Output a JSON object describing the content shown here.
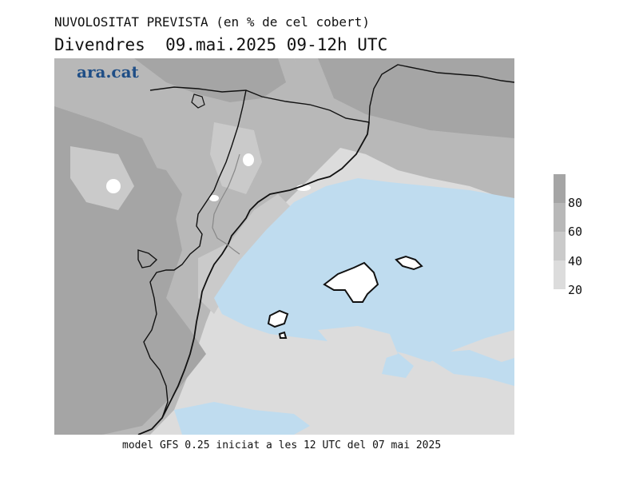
{
  "header": {
    "title": "NUVOLOSITAT PREVISTA (en % de cel cobert)",
    "subtitle": "Divendres  09.mai.2025 09-12h UTC"
  },
  "brand": {
    "label": "ara.cat"
  },
  "legend": {
    "ticks": [
      "80",
      "60",
      "40",
      "20"
    ],
    "bands": [
      {
        "range": "80-100",
        "color": "#a5a5a5"
      },
      {
        "range": "60-80",
        "color": "#b8b8b8"
      },
      {
        "range": "40-60",
        "color": "#cacaca"
      },
      {
        "range": "20-40",
        "color": "#dcdcdc"
      }
    ]
  },
  "colors": {
    "sea_clear": "#bfdcef",
    "cloud_dense": "#a5a5a5",
    "cloud_mid": "#b8b8b8",
    "cloud_light": "#cacaca",
    "cloud_thin": "#dcdcdc",
    "clear_land": "#ffffff",
    "coastline": "#111111",
    "brand": "#1f4e86"
  },
  "footer": {
    "text": "model GFS 0.25 iniciat a les 12 UTC del 07 mai 2025"
  }
}
